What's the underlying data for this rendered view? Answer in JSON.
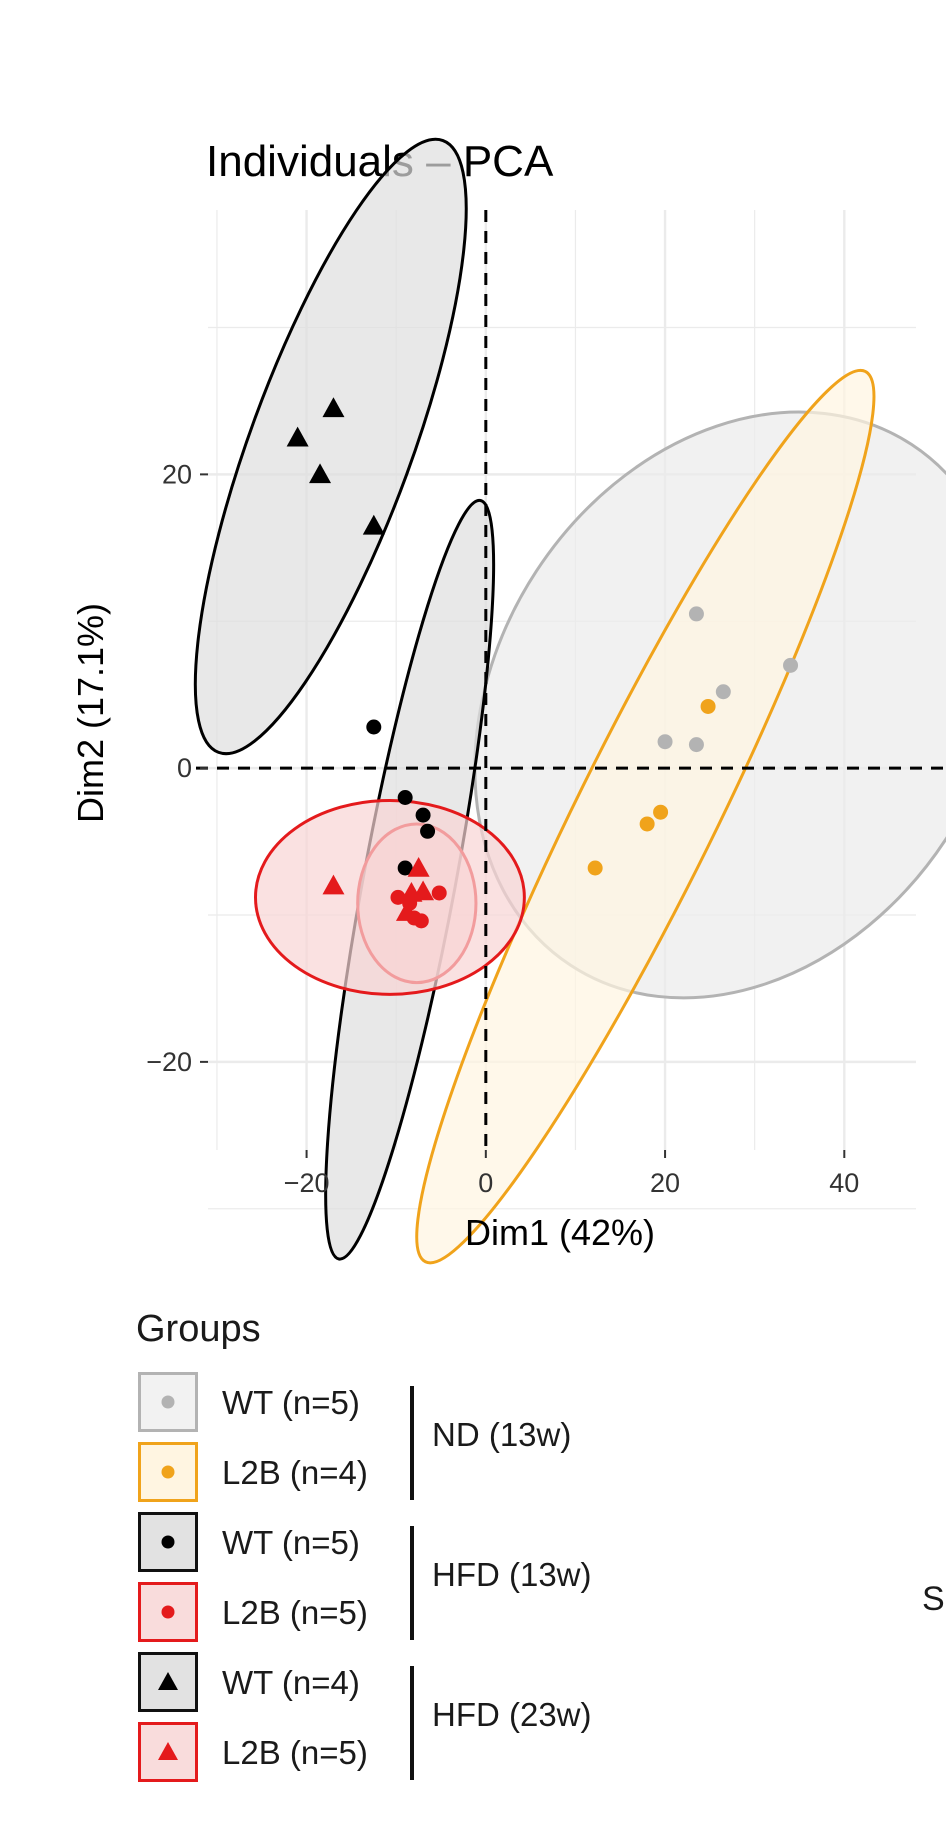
{
  "chart_data": {
    "type": "scatter",
    "title": "Individuals – PCA",
    "xlabel": "Dim1 (42%)",
    "ylabel": "Dim2 (17.1%)",
    "xlim": [
      -31,
      48
    ],
    "ylim": [
      -26,
      38
    ],
    "x_ticks": [
      {
        "value": -20,
        "label": "−20"
      },
      {
        "value": 0,
        "label": "0"
      },
      {
        "value": 20,
        "label": "20"
      },
      {
        "value": 40,
        "label": "40"
      }
    ],
    "y_ticks": [
      {
        "value": -20,
        "label": "−20"
      },
      {
        "value": 0,
        "label": "0"
      },
      {
        "value": 20,
        "label": "20"
      }
    ],
    "grid": true,
    "reference_lines": {
      "x": 0,
      "y": 0,
      "style": "dashed"
    },
    "series": [
      {
        "name": "WT (n=5)",
        "group": "ND (13w)",
        "marker": "circle",
        "color": "#b3b3b3",
        "ellipse_fill": "#ebebeb",
        "points": [
          [
            23.5,
            10.5
          ],
          [
            34,
            7
          ],
          [
            26.5,
            5.2
          ],
          [
            20,
            1.8
          ],
          [
            23.5,
            1.6
          ]
        ],
        "ellipse": {
          "cx": 28.5,
          "cy": 4.3,
          "rx": 26,
          "ry": 19.8,
          "angle": 43
        }
      },
      {
        "name": "L2B (n=4)",
        "group": "ND (13w)",
        "marker": "circle",
        "color": "#f0a31b",
        "ellipse_fill": "#fff5e1",
        "points": [
          [
            24.8,
            4.2
          ],
          [
            19.5,
            -3
          ],
          [
            18,
            -3.8
          ],
          [
            12.2,
            -6.8
          ]
        ],
        "ellipse": {
          "cx": 17.8,
          "cy": -3.3,
          "rx": 39,
          "ry": 6,
          "angle": 51
        }
      },
      {
        "name": "WT (n=5)",
        "group": "HFD (13w)",
        "marker": "circle",
        "color": "#000000",
        "ellipse_fill": "#dedede",
        "points": [
          [
            -12.5,
            2.8
          ],
          [
            -9,
            -2
          ],
          [
            -7,
            -3.2
          ],
          [
            -6.5,
            -4.3
          ],
          [
            -9,
            -6.8
          ]
        ],
        "ellipse": {
          "cx": -8.5,
          "cy": -7.6,
          "rx": 27,
          "ry": 4.8,
          "angle": 73
        }
      },
      {
        "name": "L2B (n=5)",
        "group": "HFD (13w)",
        "marker": "circle",
        "color": "#e41a1c",
        "ellipse_fill": "#f8d4d4",
        "points": [
          [
            -5.2,
            -8.5
          ],
          [
            -8.5,
            -9.2
          ],
          [
            -9.8,
            -8.8
          ],
          [
            -7.2,
            -10.4
          ],
          [
            -8.0,
            -10.2
          ]
        ],
        "ellipse": {
          "cx": -7.7,
          "cy": -9.2,
          "rx": 6.6,
          "ry": 5.4,
          "angle": 0
        }
      },
      {
        "name": "WT (n=4)",
        "group": "HFD (23w)",
        "marker": "triangle",
        "color": "#000000",
        "ellipse_fill": "#dedede",
        "points": [
          [
            -21,
            22.5
          ],
          [
            -17,
            24.5
          ],
          [
            -18.5,
            20
          ],
          [
            -12.5,
            16.5
          ]
        ],
        "ellipse": {
          "cx": -17.3,
          "cy": 21.9,
          "rx": 24.3,
          "ry": 7.5,
          "angle": 59
        }
      },
      {
        "name": "L2B (n=5)",
        "group": "HFD (23w)",
        "marker": "triangle",
        "color": "#e41a1c",
        "ellipse_fill": "#f8d4d4",
        "points": [
          [
            -17,
            -8
          ],
          [
            -7.5,
            -6.8
          ],
          [
            -8.3,
            -8.5
          ],
          [
            -8.8,
            -9.8
          ],
          [
            -7.0,
            -8.4
          ]
        ],
        "ellipse": {
          "cx": -10.7,
          "cy": -8.8,
          "rx": 15,
          "ry": 6.6,
          "angle": 0
        }
      }
    ]
  },
  "legend": {
    "title": "Groups",
    "position": "bottom",
    "rows": [
      {
        "label": "WT (n=5)",
        "marker": "circle",
        "color": "#b3b3b3",
        "border": "#b3b3b3",
        "bg": "#f2f2f2"
      },
      {
        "label": "L2B (n=4)",
        "marker": "circle",
        "color": "#f0a31b",
        "border": "#f0a31b",
        "bg": "#fff5e1"
      },
      {
        "label": "WT (n=5)",
        "marker": "circle",
        "color": "#000000",
        "border": "#111111",
        "bg": "#e2e2e2"
      },
      {
        "label": "L2B (n=5)",
        "marker": "circle",
        "color": "#e41a1c",
        "border": "#e41a1c",
        "bg": "#f9dcdc"
      },
      {
        "label": "WT (n=4)",
        "marker": "triangle",
        "color": "#000000",
        "border": "#111111",
        "bg": "#e2e2e2"
      },
      {
        "label": "L2B (n=5)",
        "marker": "triangle",
        "color": "#e41a1c",
        "border": "#e41a1c",
        "bg": "#f9dcdc"
      }
    ],
    "groups": [
      "ND (13w)",
      "HFD (13w)",
      "HFD (23w)"
    ]
  },
  "fragment_text": "S"
}
